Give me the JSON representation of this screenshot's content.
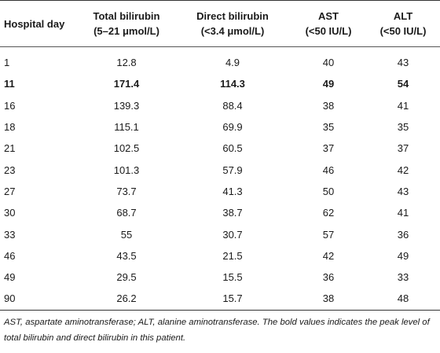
{
  "headers": [
    {
      "line1": "Hospital day",
      "line2": ""
    },
    {
      "line1": "Total bilirubin",
      "line2": "(5–21 μmol/L)"
    },
    {
      "line1": "Direct bilirubin",
      "line2": "(<3.4 μmol/L)"
    },
    {
      "line1": "AST",
      "line2": "(<50 IU/L)"
    },
    {
      "line1": "ALT",
      "line2": "(<50 IU/L)"
    }
  ],
  "rows": [
    {
      "day": "1",
      "total": "12.8",
      "direct": "4.9",
      "ast": "40",
      "alt": "43",
      "bold": false
    },
    {
      "day": "11",
      "total": "171.4",
      "direct": "114.3",
      "ast": "49",
      "alt": "54",
      "bold": true
    },
    {
      "day": "16",
      "total": "139.3",
      "direct": "88.4",
      "ast": "38",
      "alt": "41",
      "bold": false
    },
    {
      "day": "18",
      "total": "115.1",
      "direct": "69.9",
      "ast": "35",
      "alt": "35",
      "bold": false
    },
    {
      "day": "21",
      "total": "102.5",
      "direct": "60.5",
      "ast": "37",
      "alt": "37",
      "bold": false
    },
    {
      "day": "23",
      "total": "101.3",
      "direct": "57.9",
      "ast": "46",
      "alt": "42",
      "bold": false
    },
    {
      "day": "27",
      "total": "73.7",
      "direct": "41.3",
      "ast": "50",
      "alt": "43",
      "bold": false
    },
    {
      "day": "30",
      "total": "68.7",
      "direct": "38.7",
      "ast": "62",
      "alt": "41",
      "bold": false
    },
    {
      "day": "33",
      "total": "55",
      "direct": "30.7",
      "ast": "57",
      "alt": "36",
      "bold": false
    },
    {
      "day": "46",
      "total": "43.5",
      "direct": "21.5",
      "ast": "42",
      "alt": "49",
      "bold": false
    },
    {
      "day": "49",
      "total": "29.5",
      "direct": "15.5",
      "ast": "36",
      "alt": "33",
      "bold": false
    },
    {
      "day": "90",
      "total": "26.2",
      "direct": "15.7",
      "ast": "38",
      "alt": "48",
      "bold": false
    }
  ],
  "footnote": "AST, aspartate aminotransferase; ALT, alanine aminotransferase. The bold values indicates the peak level of total bilirubin and direct bilirubin in this patient."
}
